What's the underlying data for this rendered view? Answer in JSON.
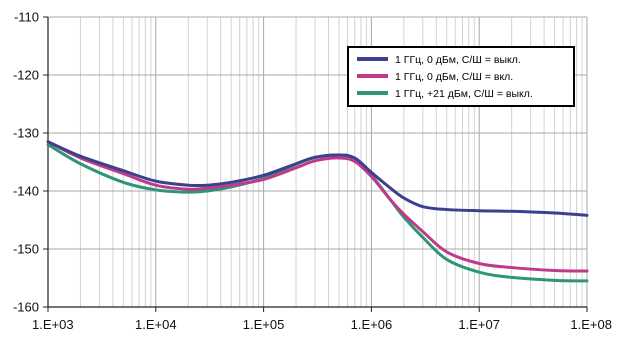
{
  "chart_data": {
    "type": "line",
    "x_scale": "log",
    "xlim": [
      1000,
      100000000
    ],
    "ylim": [
      -160,
      -110
    ],
    "x_ticks": [
      1000,
      10000,
      100000,
      1000000,
      10000000,
      100000000
    ],
    "x_tick_labels": [
      "1.E+03",
      "1.E+04",
      "1.E+05",
      "1.E+06",
      "1.E+07",
      "1.E+08"
    ],
    "y_ticks": [
      -110,
      -120,
      -130,
      -140,
      -150,
      -160
    ],
    "y_tick_labels": [
      "-110",
      "-120",
      "-130",
      "-140",
      "-150",
      "-160"
    ],
    "grid": true,
    "legend_position": "top-right",
    "series": [
      {
        "name": "1 ГГц, 0 дБм, С/Ш = выкл.",
        "color": "#3d3f8f",
        "x": [
          1000,
          2000,
          5000,
          10000,
          20000,
          30000,
          50000,
          100000,
          200000,
          300000,
          500000,
          700000,
          1000000,
          1500000,
          2000000,
          3000000,
          5000000,
          10000000,
          20000000,
          50000000,
          100000000
        ],
        "y": [
          -131.5,
          -134,
          -136.5,
          -138.3,
          -139,
          -139,
          -138.5,
          -137.3,
          -135.3,
          -134.2,
          -133.8,
          -134.3,
          -136.8,
          -139.5,
          -141.2,
          -142.7,
          -143.2,
          -143.4,
          -143.5,
          -143.8,
          -144.2
        ]
      },
      {
        "name": "1 ГГц, 0 дБм, С/Ш = вкл.",
        "color": "#c0398a",
        "x": [
          1000,
          2000,
          5000,
          10000,
          20000,
          30000,
          50000,
          100000,
          200000,
          300000,
          500000,
          700000,
          1000000,
          1500000,
          2000000,
          3000000,
          5000000,
          10000000,
          20000000,
          50000000,
          100000000
        ],
        "y": [
          -131.5,
          -134.3,
          -137,
          -139,
          -139.7,
          -139.5,
          -139,
          -138,
          -136,
          -134.8,
          -134.3,
          -134.9,
          -137.5,
          -141.5,
          -144,
          -147,
          -150.5,
          -152.5,
          -153.2,
          -153.7,
          -153.8
        ]
      },
      {
        "name": "1 ГГц, +21 дБм, С/Ш = выкл.",
        "color": "#2e9579",
        "x": [
          1000,
          2000,
          5000,
          10000,
          20000,
          30000,
          50000,
          100000,
          200000,
          300000,
          500000,
          700000,
          1000000,
          1500000,
          2000000,
          3000000,
          5000000,
          10000000,
          20000000,
          50000000,
          100000000
        ],
        "y": [
          -132,
          -135.3,
          -138.5,
          -139.8,
          -140.2,
          -140,
          -139.3,
          -137.8,
          -135.4,
          -134.2,
          -133.8,
          -134.5,
          -137.3,
          -141.5,
          -144.5,
          -148,
          -151.8,
          -154,
          -154.9,
          -155.4,
          -155.5
        ]
      }
    ]
  }
}
